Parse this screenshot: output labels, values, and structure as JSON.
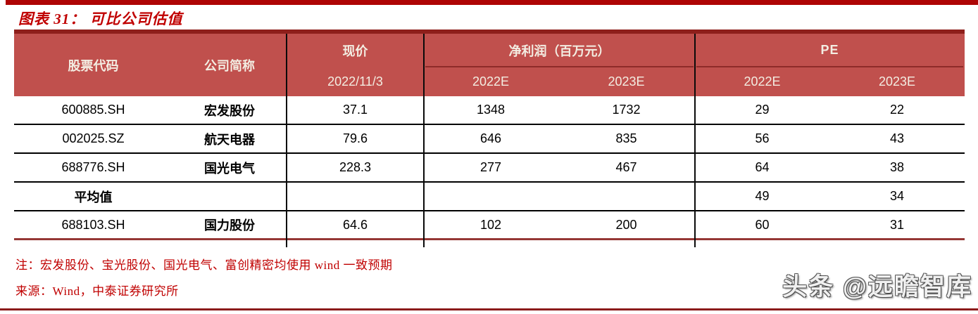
{
  "title": "图表 31：  可比公司估值",
  "colors": {
    "header_bg": "#c0504d",
    "header_text": "#f3ede2",
    "title_red": "#c00000",
    "top_bar_red": "#ae0505",
    "table_top_border": "#8e1f1b",
    "table_bottom_border": "#953735",
    "row_divider": "#000000",
    "bottom_rule": "#8b1a1a"
  },
  "table": {
    "header": {
      "col_code": "股票代码",
      "col_name": "公司简称",
      "group_price": "现价",
      "price_date": "2022/11/3",
      "group_net_profit": "净利润（百万元）",
      "np_2022": "2022E",
      "np_2023": "2023E",
      "group_pe": "PE",
      "pe_2022": "2022E",
      "pe_2023": "2023E"
    },
    "rows": [
      {
        "code": "600885.SH",
        "name": "宏发股份",
        "price": "37.1",
        "np_2022e": "1348",
        "np_2023e": "1732",
        "pe_2022e": "29",
        "pe_2023e": "22"
      },
      {
        "code": "002025.SZ",
        "name": "航天电器",
        "price": "79.6",
        "np_2022e": "646",
        "np_2023e": "835",
        "pe_2022e": "56",
        "pe_2023e": "43"
      },
      {
        "code": "688776.SH",
        "name": "国光电气",
        "price": "228.3",
        "np_2022e": "277",
        "np_2023e": "467",
        "pe_2022e": "64",
        "pe_2023e": "38"
      },
      {
        "code": "平均值",
        "name": "",
        "price": "",
        "np_2022e": "",
        "np_2023e": "",
        "pe_2022e": "49",
        "pe_2023e": "34"
      },
      {
        "code": "688103.SH",
        "name": "国力股份",
        "price": "64.6",
        "np_2022e": "102",
        "np_2023e": "200",
        "pe_2022e": "60",
        "pe_2023e": "31"
      }
    ]
  },
  "notes": {
    "note": "注：宏发股份、宝光股份、国光电气、富创精密均使用 wind 一致预期",
    "source": "来源：Wind，中泰证券研究所"
  },
  "watermark": {
    "text": "头条 @远瞻智库"
  }
}
